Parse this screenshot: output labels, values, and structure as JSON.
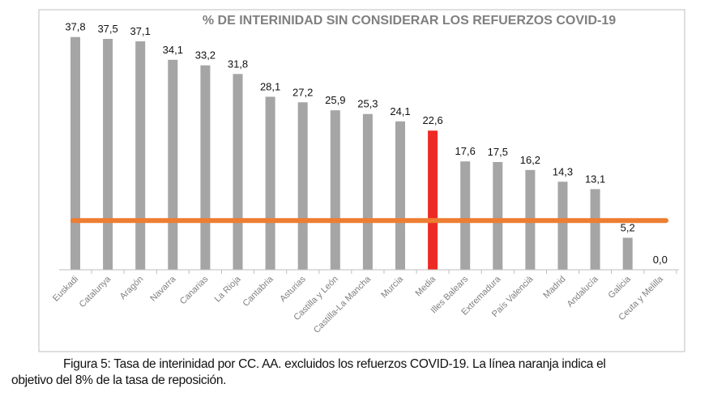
{
  "chart_data": {
    "type": "bar",
    "title": "% DE INTERINIDAD SIN CONSIDERAR LOS REFUERZOS COVID-19",
    "xlabel": "",
    "ylabel": "",
    "categories": [
      "Euskadi",
      "Catalunya",
      "Aragón",
      "Navarra",
      "Canarias",
      "La Rioja",
      "Cantabria",
      "Asturias",
      "Castilla y León",
      "Castilla-La Mancha",
      "Murcia",
      "Media",
      "Illes Balears",
      "Extremadura",
      "País Valencià",
      "Madrid",
      "Andalucía",
      "Galicia",
      "Ceuta y Melilla"
    ],
    "values": [
      37.8,
      37.5,
      37.1,
      34.1,
      33.2,
      31.8,
      28.1,
      27.2,
      25.9,
      25.3,
      24.1,
      22.6,
      17.6,
      17.5,
      16.2,
      14.3,
      13.1,
      5.2,
      0.0
    ],
    "data_labels": [
      "37,8",
      "37,5",
      "37,1",
      "34,1",
      "33,2",
      "31,8",
      "28,1",
      "27,2",
      "25,9",
      "25,3",
      "24,1",
      "22,6",
      "17,6",
      "17,5",
      "16,2",
      "14,3",
      "13,1",
      "5,2",
      "0,0"
    ],
    "highlight_category": "Media",
    "reference_line": {
      "value": 8,
      "color": "#ED7D31"
    },
    "ylim": [
      0,
      40
    ],
    "grid": false,
    "legend": "none",
    "colors": {
      "bar": "#A5A5A5",
      "highlight": "#EE2A24",
      "title": "#808080",
      "label": "#7F7F7F"
    }
  },
  "caption": {
    "line1": "Figura 5: Tasa de interinidad por CC. AA. excluidos los refuerzos COVID-19. La línea naranja indica el",
    "line2": "objetivo del 8% de la tasa de reposición."
  }
}
